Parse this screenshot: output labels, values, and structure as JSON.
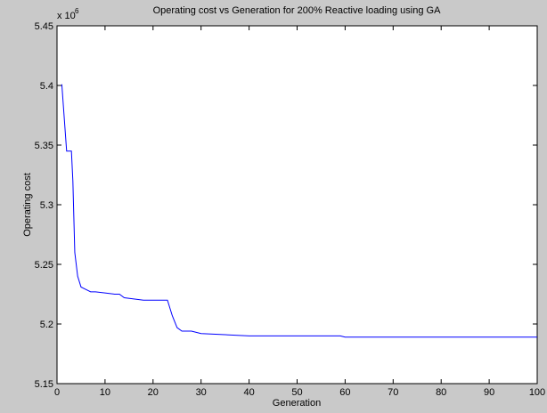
{
  "figure": {
    "background": "#c9c9c9",
    "plot_background": "#ffffff",
    "line_color": "#0000ff"
  },
  "chart_data": {
    "type": "line",
    "title": "Operating cost vs Generation for 200% Reactive loading using GA",
    "xlabel": "Generation",
    "ylabel": "Operating cost",
    "y_exponent_label": "x 10",
    "y_exponent_power": "6",
    "xlim": [
      0,
      100
    ],
    "ylim": [
      5.15,
      5.45
    ],
    "x_ticks": [
      0,
      10,
      20,
      30,
      40,
      50,
      60,
      70,
      80,
      90,
      100
    ],
    "y_ticks": [
      5.15,
      5.2,
      5.25,
      5.3,
      5.35,
      5.4,
      5.45
    ],
    "x_tick_labels": [
      "0",
      "10",
      "20",
      "30",
      "40",
      "50",
      "60",
      "70",
      "80",
      "90",
      "100"
    ],
    "y_tick_labels": [
      "5.15",
      "5.2",
      "5.25",
      "5.3",
      "5.35",
      "5.4",
      "5.45"
    ],
    "grid": false,
    "series": [
      {
        "x": [
          1,
          2,
          3,
          3.3,
          3.7,
          4.3,
          5,
          6,
          7,
          8,
          10,
          12,
          13,
          14,
          16,
          18,
          20,
          22,
          23,
          24,
          25,
          26,
          27,
          28,
          29,
          30,
          35,
          40,
          50,
          59,
          60,
          70,
          80,
          90,
          100
        ],
        "y": [
          5.401,
          5.345,
          5.345,
          5.32,
          5.26,
          5.24,
          5.231,
          5.229,
          5.227,
          5.227,
          5.226,
          5.225,
          5.225,
          5.222,
          5.221,
          5.22,
          5.22,
          5.22,
          5.22,
          5.207,
          5.197,
          5.194,
          5.194,
          5.194,
          5.193,
          5.192,
          5.191,
          5.19,
          5.19,
          5.19,
          5.189,
          5.189,
          5.189,
          5.189,
          5.189
        ]
      }
    ]
  }
}
